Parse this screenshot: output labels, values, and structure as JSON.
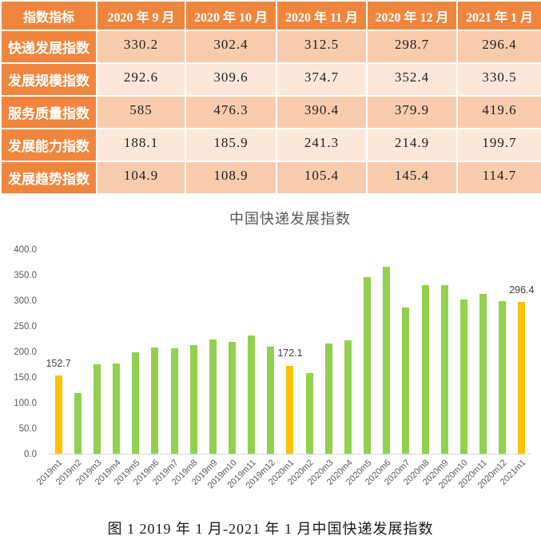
{
  "table": {
    "header": [
      "指数指标",
      "2020 年 9 月",
      "2020 年 10 月",
      "2020 年 11 月",
      "2020 年 12 月",
      "2021 年 1 月"
    ],
    "rows": [
      {
        "label": "快递发展指数",
        "values": [
          "330.2",
          "302.4",
          "312.5",
          "298.7",
          "296.4"
        ]
      },
      {
        "label": "发展规模指数",
        "values": [
          "292.6",
          "309.6",
          "374.7",
          "352.4",
          "330.5"
        ]
      },
      {
        "label": "服务质量指数",
        "values": [
          "585",
          "476.3",
          "390.4",
          "379.9",
          "419.6"
        ]
      },
      {
        "label": "发展能力指数",
        "values": [
          "188.1",
          "185.9",
          "241.3",
          "214.9",
          "199.7"
        ]
      },
      {
        "label": "发展趋势指数",
        "values": [
          "104.9",
          "108.9",
          "105.4",
          "145.4",
          "114.7"
        ]
      }
    ]
  },
  "chart_data": {
    "type": "bar",
    "title": "中国快递发展指数",
    "categories": [
      "2019m1",
      "2019m2",
      "2019m3",
      "2019m4",
      "2019m5",
      "2019m6",
      "2019m7",
      "2019m8",
      "2019m9",
      "2019m10",
      "2019m11",
      "2019m12",
      "2020m1",
      "2020m2",
      "2020m3",
      "2020m4",
      "2020m5",
      "2020m6",
      "2020m7",
      "2020m8",
      "2020m9",
      "2020m10",
      "2020m11",
      "2020m12",
      "2021m1"
    ],
    "values": [
      152.7,
      119.5,
      174.5,
      176.0,
      198.0,
      207.5,
      207.0,
      212.0,
      223.5,
      219.0,
      231.0,
      209.0,
      172.1,
      157.4,
      215.5,
      222.0,
      345.5,
      365.5,
      286.0,
      329.0,
      330.2,
      302.4,
      312.5,
      298.7,
      296.4
    ],
    "highlighted_indices": [
      0,
      12,
      24
    ],
    "data_labels": {
      "0": "152.7",
      "12": "172.1",
      "24": "296.4"
    },
    "xlabel": "",
    "ylabel": "",
    "ylim": [
      0,
      400
    ],
    "ytick_labels": [
      "400.0",
      "350.0",
      "300.0",
      "250.0",
      "200.0",
      "150.0",
      "100.0",
      "50.0",
      "0.0"
    ],
    "grid": false,
    "legend_position": "none",
    "bar_color_default": "#92D050",
    "bar_color_highlight": "#FFC000"
  },
  "caption": "图 1 2019 年 1 月-2021 年 1 月中国快递发展指数",
  "colors": {
    "header_bg": "#F0863D",
    "row_dark": "#F8CBAD",
    "row_light": "#FCE8DA",
    "bar_green": "#92D050",
    "bar_orange": "#FFC000",
    "axis_text": "#595959",
    "axis_line": "#D9D9D9",
    "label_text": "#404040",
    "caption_text": "#1a1a1a"
  }
}
